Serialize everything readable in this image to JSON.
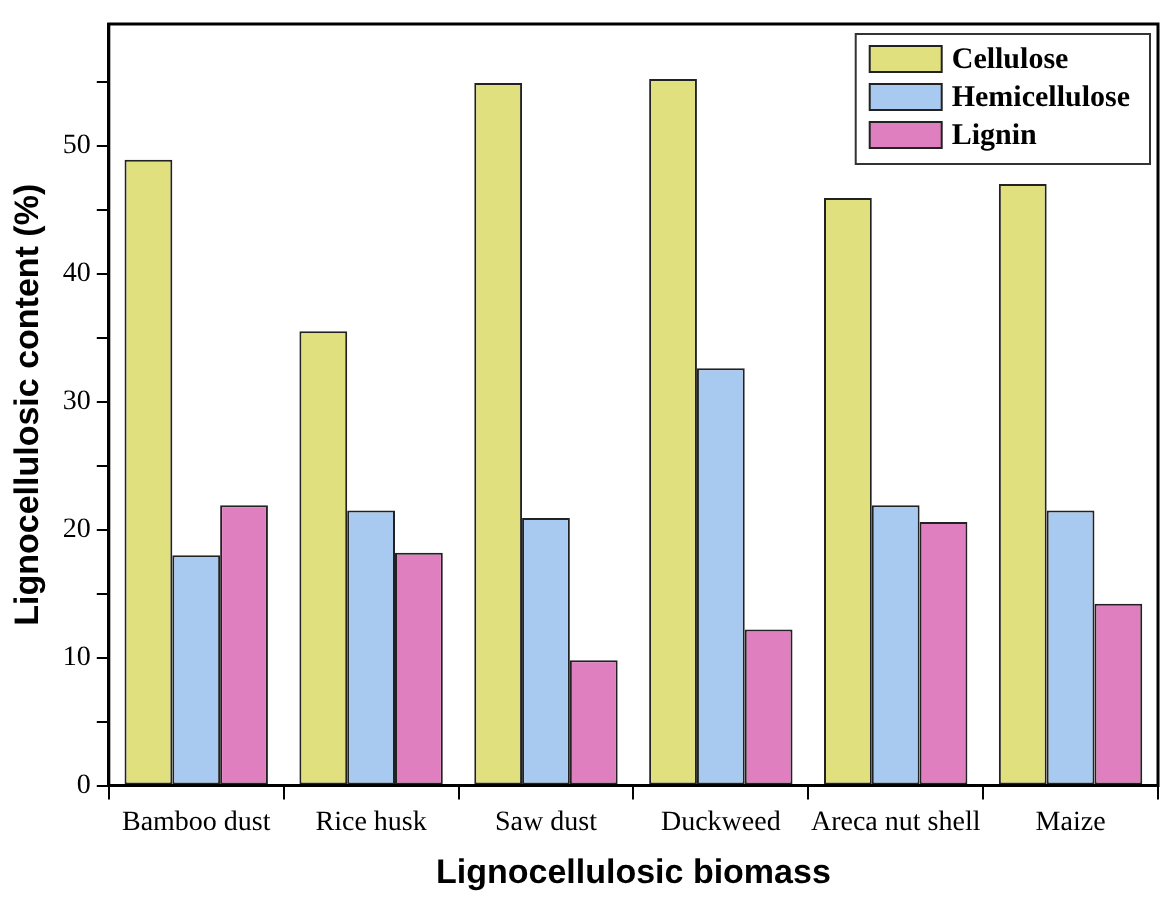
{
  "chart_data": {
    "type": "bar",
    "xlabel": "Lignocellulosic biomass",
    "ylabel": "Lignocellulosic content (%)",
    "categories": [
      "Bamboo dust",
      "Rice husk",
      "Saw dust",
      "Duckweed",
      "Areca nut shell",
      "Maize"
    ],
    "series": [
      {
        "name": "Cellulose",
        "color": "#e0e07e",
        "values": [
          48.9,
          35.5,
          54.9,
          55.2,
          45.9,
          47.0
        ]
      },
      {
        "name": "Hemicellulose",
        "color": "#a8caf0",
        "values": [
          18.0,
          21.5,
          20.9,
          32.6,
          21.9,
          21.5
        ]
      },
      {
        "name": "Lignin",
        "color": "#e07fbf",
        "values": [
          21.9,
          18.2,
          9.8,
          12.2,
          20.6,
          14.2
        ]
      }
    ],
    "ylim": [
      0,
      59.5
    ],
    "yticks": [
      0,
      {
        "value": 5,
        "label": null
      },
      10,
      {
        "value": 15,
        "label": null
      },
      20,
      {
        "value": 25,
        "label": null
      },
      30,
      {
        "value": 35,
        "label": null
      },
      40,
      {
        "value": 45,
        "label": null
      },
      50,
      {
        "value": 55,
        "label": null
      }
    ],
    "grid": false,
    "legend": "top right"
  }
}
